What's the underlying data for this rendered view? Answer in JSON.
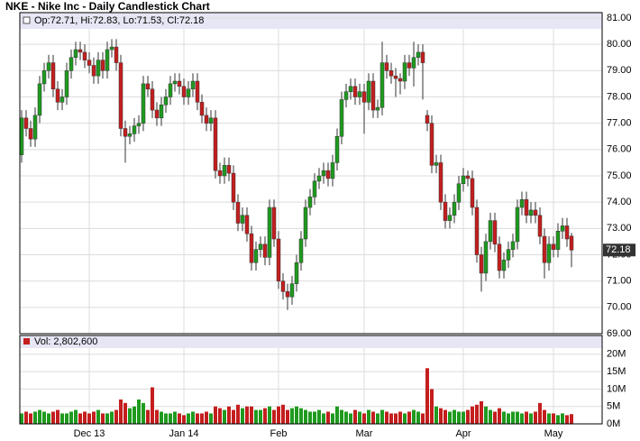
{
  "chart_data": {
    "type": "candlestick",
    "title": "NKE - Nike Inc - Daily Candlestick Chart",
    "ohlc_label": "Op:72.71, Hi:72.83, Lo:71.53, Cl:72.18",
    "volume_label": "Vol: 2,802,600",
    "up_color": "#1f9a1f",
    "down_color": "#c41e1e",
    "open": [
      75.8,
      77.2,
      76.8,
      76.4,
      77.3,
      78.5,
      79.0,
      79.3,
      78.3,
      77.8,
      78.0,
      79.0,
      79.5,
      79.8,
      79.7,
      79.4,
      79.2,
      78.8,
      79.4,
      79.0,
      79.8,
      79.9,
      79.3,
      76.8,
      76.5,
      76.6,
      76.9,
      77.0,
      78.5,
      78.3,
      77.5,
      77.2,
      77.7,
      78.0,
      78.5,
      78.6,
      78.4,
      78.0,
      78.3,
      78.6,
      77.8,
      77.3,
      77.0,
      77.2,
      75.2,
      75.0,
      75.4,
      75.1,
      74.0,
      73.2,
      73.5,
      72.8,
      71.7,
      72.2,
      72.4,
      71.9,
      73.8,
      72.6,
      71.0,
      70.6,
      70.4,
      70.9,
      71.7,
      72.6,
      73.8,
      74.2,
      74.8,
      75.0,
      75.2,
      74.9,
      75.5,
      76.5,
      77.9,
      78.2,
      78.4,
      78.0,
      78.2,
      77.8,
      78.6,
      77.5,
      77.6,
      79.3,
      79.0,
      78.8,
      78.7,
      78.6,
      79.3,
      79.1,
      79.5,
      79.7,
      77.3,
      77.0,
      75.4,
      75.5,
      74.0,
      73.3,
      73.5,
      74.0,
      74.7,
      75.0,
      74.9,
      73.8,
      72.0,
      71.3,
      72.5,
      73.3,
      72.4,
      71.4,
      71.8,
      72.2,
      72.5,
      73.8,
      74.1,
      73.5,
      73.7,
      73.5,
      72.7,
      71.7,
      72.4,
      72.2,
      72.9,
      73.1,
      72.71
    ],
    "high": [
      77.5,
      77.5,
      77.1,
      77.6,
      78.8,
      79.3,
      79.6,
      79.6,
      78.6,
      78.3,
      79.3,
      79.8,
      80.1,
      80.1,
      80.0,
      79.7,
      79.5,
      79.7,
      79.7,
      80.1,
      80.2,
      80.2,
      79.6,
      77.1,
      76.9,
      77.2,
      77.3,
      78.8,
      78.8,
      78.6,
      77.8,
      78.0,
      78.3,
      78.8,
      78.9,
      78.9,
      78.7,
      78.6,
      78.9,
      78.9,
      78.1,
      77.6,
      77.5,
      77.5,
      75.5,
      75.7,
      75.7,
      75.4,
      74.3,
      73.8,
      73.8,
      73.1,
      72.5,
      72.7,
      72.7,
      74.1,
      74.1,
      72.9,
      71.3,
      70.9,
      71.2,
      72.0,
      72.9,
      74.1,
      74.5,
      75.1,
      75.3,
      75.5,
      75.5,
      75.8,
      76.8,
      78.2,
      78.5,
      78.7,
      78.7,
      78.5,
      78.5,
      78.9,
      78.9,
      77.9,
      80.1,
      79.6,
      79.3,
      79.1,
      78.9,
      79.6,
      79.6,
      80.1,
      80.0,
      80.0,
      77.5,
      77.3,
      75.8,
      75.8,
      74.3,
      73.8,
      74.3,
      75.0,
      75.3,
      75.2,
      75.2,
      74.1,
      72.3,
      72.8,
      73.6,
      73.6,
      72.7,
      72.1,
      72.5,
      72.8,
      74.1,
      74.4,
      74.4,
      74.0,
      74.0,
      73.8,
      73.0,
      72.7,
      72.7,
      73.2,
      73.4,
      73.4,
      72.83
    ],
    "low": [
      75.5,
      76.5,
      76.1,
      76.1,
      77.0,
      78.2,
      78.7,
      78.0,
      77.5,
      77.5,
      77.7,
      78.7,
      79.2,
      79.4,
      79.1,
      78.9,
      78.5,
      78.5,
      78.7,
      78.7,
      79.5,
      79.0,
      76.5,
      75.5,
      76.2,
      76.3,
      76.6,
      76.7,
      78.0,
      77.2,
      76.9,
      76.9,
      77.4,
      77.7,
      78.2,
      78.1,
      77.7,
      77.7,
      78.0,
      77.5,
      77.0,
      76.7,
      76.7,
      74.9,
      74.7,
      74.7,
      74.8,
      73.7,
      72.9,
      72.9,
      72.5,
      71.4,
      71.4,
      71.9,
      71.6,
      71.6,
      72.3,
      70.7,
      70.3,
      69.9,
      70.1,
      70.6,
      71.4,
      72.3,
      73.5,
      73.9,
      74.5,
      74.7,
      74.6,
      74.6,
      75.2,
      76.2,
      77.6,
      77.9,
      77.7,
      77.7,
      76.6,
      77.5,
      77.2,
      77.2,
      77.3,
      78.7,
      78.5,
      78.0,
      78.1,
      78.3,
      78.8,
      78.4,
      79.2,
      77.9,
      76.7,
      75.1,
      75.1,
      73.7,
      73.0,
      73.0,
      73.2,
      73.7,
      74.4,
      74.6,
      73.5,
      71.7,
      70.6,
      71.0,
      72.2,
      72.1,
      71.1,
      71.1,
      71.5,
      71.9,
      72.2,
      73.5,
      73.2,
      73.2,
      73.2,
      72.4,
      71.1,
      71.4,
      71.9,
      71.9,
      72.6,
      72.3,
      71.53
    ],
    "close": [
      77.2,
      76.8,
      76.4,
      77.3,
      78.5,
      79.0,
      79.3,
      78.3,
      77.8,
      78.0,
      79.0,
      79.5,
      79.8,
      79.7,
      79.4,
      79.2,
      78.8,
      79.4,
      79.0,
      79.8,
      79.9,
      79.3,
      76.8,
      76.5,
      76.6,
      76.9,
      77.0,
      78.5,
      78.3,
      77.5,
      77.2,
      77.7,
      78.0,
      78.5,
      78.6,
      78.4,
      78.0,
      78.3,
      78.6,
      77.8,
      77.3,
      77.0,
      77.2,
      75.2,
      75.0,
      75.4,
      75.1,
      74.0,
      73.2,
      73.5,
      72.8,
      71.7,
      72.2,
      72.4,
      71.9,
      73.8,
      72.6,
      71.0,
      70.6,
      70.4,
      70.9,
      71.7,
      72.6,
      73.8,
      74.2,
      74.8,
      75.0,
      75.2,
      74.9,
      75.5,
      76.5,
      77.9,
      78.2,
      78.4,
      78.0,
      78.2,
      77.8,
      78.6,
      77.5,
      77.6,
      79.3,
      79.0,
      78.8,
      78.7,
      78.6,
      79.3,
      79.1,
      79.5,
      79.7,
      79.3,
      77.0,
      75.4,
      75.5,
      74.0,
      73.3,
      73.5,
      74.0,
      74.7,
      75.0,
      74.9,
      73.8,
      72.0,
      71.3,
      72.5,
      73.3,
      72.4,
      71.4,
      71.8,
      72.2,
      72.5,
      73.8,
      74.1,
      73.5,
      73.7,
      73.5,
      72.7,
      71.7,
      72.4,
      72.2,
      72.9,
      73.1,
      72.6,
      72.18
    ],
    "volume": [
      3,
      3.5,
      3,
      3.5,
      4,
      3.5,
      3,
      3.5,
      4,
      3,
      3,
      3.5,
      4,
      3,
      3.5,
      3,
      3.5,
      4,
      3,
      3,
      3.5,
      4,
      7,
      6,
      4.5,
      5,
      7,
      6,
      4,
      10.5,
      4,
      3.5,
      3,
      3,
      3.5,
      3,
      2.5,
      3,
      3.5,
      3,
      3,
      3.5,
      3,
      5,
      4.5,
      4,
      5,
      4,
      5.5,
      4.5,
      5,
      5,
      4,
      4,
      4.5,
      5,
      4,
      5,
      5.5,
      4,
      4.5,
      5,
      4.5,
      4,
      3.5,
      3.5,
      4,
      3,
      3.5,
      3,
      5,
      4,
      3.5,
      3,
      4,
      3.5,
      3,
      4,
      3.5,
      3,
      4,
      3.5,
      3,
      3,
      3.5,
      3,
      3.5,
      4,
      3.5,
      3,
      16,
      10,
      5,
      4.5,
      4,
      3.5,
      4,
      3.5,
      3.5,
      4,
      5,
      5.5,
      6.5,
      5,
      4,
      3.5,
      4.5,
      3.5,
      3,
      3.5,
      3.5,
      3,
      3.5,
      3,
      3.5,
      6,
      4,
      3,
      3,
      2.5,
      3,
      2.5,
      2.8026
    ],
    "ylim": [
      69,
      81
    ],
    "yticks": [
      {
        "value": 69,
        "label": "69.00"
      },
      {
        "value": 70,
        "label": "70.00"
      },
      {
        "value": 71,
        "label": "71.00"
      },
      {
        "value": 72,
        "label": "72.00"
      },
      {
        "value": 73,
        "label": "73.00"
      },
      {
        "value": 74,
        "label": "74.00"
      },
      {
        "value": 75,
        "label": "75.00"
      },
      {
        "value": 76,
        "label": "76.00"
      },
      {
        "value": 77,
        "label": "77.00"
      },
      {
        "value": 78,
        "label": "78.00"
      },
      {
        "value": 79,
        "label": "79.00"
      },
      {
        "value": 80,
        "label": "80.00"
      },
      {
        "value": 81,
        "label": "81.00"
      }
    ],
    "y2lim": [
      0,
      25.4
    ],
    "y2ticks": [
      {
        "value": 0,
        "label": "0M"
      },
      {
        "value": 5,
        "label": "5M"
      },
      {
        "value": 10,
        "label": "10M"
      },
      {
        "value": 15,
        "label": "15M"
      },
      {
        "value": 20,
        "label": "20M"
      }
    ],
    "xticks": [
      {
        "value": 15,
        "label": "Dec 13"
      },
      {
        "value": 36,
        "label": "Jan 14"
      },
      {
        "value": 57,
        "label": "Feb"
      },
      {
        "value": 76,
        "label": "Mar"
      },
      {
        "value": 98,
        "label": "Apr"
      },
      {
        "value": 118,
        "label": "May"
      }
    ],
    "grid": true
  }
}
